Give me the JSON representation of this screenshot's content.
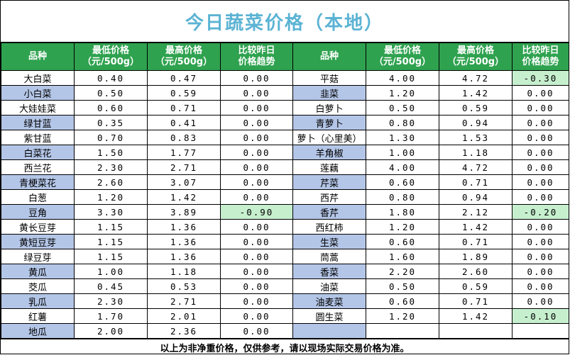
{
  "title": "今日蔬菜价格（本地）",
  "headers": {
    "name": "品种",
    "min_line1": "最低价格",
    "min_line2": "（元/500g）",
    "max_line1": "最高价格",
    "max_line2": "（元/500g）",
    "trend_line1": "比较昨日",
    "trend_line2": "价格趋势"
  },
  "rows": [
    {
      "l": {
        "name": "大白菜",
        "min": "0.40",
        "max": "0.47",
        "trend": "0.00"
      },
      "r": {
        "name": "平菇",
        "min": "4.00",
        "max": "4.72",
        "trend": "-0.30"
      }
    },
    {
      "l": {
        "name": "小白菜",
        "min": "0.50",
        "max": "0.59",
        "trend": "0.00"
      },
      "r": {
        "name": "韭菜",
        "min": "1.20",
        "max": "1.42",
        "trend": "0.00"
      }
    },
    {
      "l": {
        "name": "大娃娃菜",
        "min": "0.60",
        "max": "0.71",
        "trend": "0.00"
      },
      "r": {
        "name": "白萝卜",
        "min": "0.50",
        "max": "0.59",
        "trend": "0.00"
      }
    },
    {
      "l": {
        "name": "绿甘蓝",
        "min": "0.35",
        "max": "0.41",
        "trend": "0.00"
      },
      "r": {
        "name": "青萝卜",
        "min": "0.80",
        "max": "0.94",
        "trend": "0.00"
      }
    },
    {
      "l": {
        "name": "紫甘蓝",
        "min": "0.70",
        "max": "0.83",
        "trend": "0.00"
      },
      "r": {
        "name": "萝卜（心里美）",
        "min": "1.30",
        "max": "1.53",
        "trend": "0.00"
      }
    },
    {
      "l": {
        "name": "白菜花",
        "min": "1.50",
        "max": "1.77",
        "trend": "0.00"
      },
      "r": {
        "name": "羊角椒",
        "min": "1.00",
        "max": "1.18",
        "trend": "0.00"
      }
    },
    {
      "l": {
        "name": "西兰花",
        "min": "2.30",
        "max": "2.71",
        "trend": "0.00"
      },
      "r": {
        "name": "莲藕",
        "min": "4.00",
        "max": "4.72",
        "trend": "0.00"
      }
    },
    {
      "l": {
        "name": "青梗菜花",
        "min": "2.60",
        "max": "3.07",
        "trend": "0.00"
      },
      "r": {
        "name": "芹菜",
        "min": "0.60",
        "max": "0.71",
        "trend": "0.00"
      }
    },
    {
      "l": {
        "name": "白葱",
        "min": "1.20",
        "max": "1.42",
        "trend": "0.00"
      },
      "r": {
        "name": "西芹",
        "min": "0.80",
        "max": "0.94",
        "trend": "0.00"
      }
    },
    {
      "l": {
        "name": "豆角",
        "min": "3.30",
        "max": "3.89",
        "trend": "-0.90"
      },
      "r": {
        "name": "香芹",
        "min": "1.80",
        "max": "2.12",
        "trend": "-0.20"
      }
    },
    {
      "l": {
        "name": "黄长豆芽",
        "min": "1.15",
        "max": "1.36",
        "trend": "0.00"
      },
      "r": {
        "name": "西红柿",
        "min": "1.20",
        "max": "1.42",
        "trend": "0.00"
      }
    },
    {
      "l": {
        "name": "黄短豆芽",
        "min": "1.15",
        "max": "1.36",
        "trend": "0.00"
      },
      "r": {
        "name": "生菜",
        "min": "0.60",
        "max": "0.71",
        "trend": "0.00"
      }
    },
    {
      "l": {
        "name": "绿豆芽",
        "min": "1.15",
        "max": "1.36",
        "trend": "0.00"
      },
      "r": {
        "name": "茼蒿",
        "min": "1.60",
        "max": "1.89",
        "trend": "0.00"
      }
    },
    {
      "l": {
        "name": "黄瓜",
        "min": "1.00",
        "max": "1.18",
        "trend": "0.00"
      },
      "r": {
        "name": "香菜",
        "min": "2.20",
        "max": "2.60",
        "trend": "0.00"
      }
    },
    {
      "l": {
        "name": "茭瓜",
        "min": "0.45",
        "max": "0.53",
        "trend": "0.00"
      },
      "r": {
        "name": "油菜",
        "min": "0.50",
        "max": "0.59",
        "trend": "0.00"
      }
    },
    {
      "l": {
        "name": "乳瓜",
        "min": "2.30",
        "max": "2.71",
        "trend": "0.00"
      },
      "r": {
        "name": "油麦菜",
        "min": "0.60",
        "max": "0.71",
        "trend": "0.00"
      }
    },
    {
      "l": {
        "name": "红薯",
        "min": "1.70",
        "max": "2.01",
        "trend": "0.00"
      },
      "r": {
        "name": "圆生菜",
        "min": "1.20",
        "max": "1.42",
        "trend": "-0.10"
      }
    },
    {
      "l": {
        "name": "地瓜",
        "min": "2.00",
        "max": "2.36",
        "trend": "0.00"
      },
      "r": {
        "name": "",
        "min": "",
        "max": "",
        "trend": ""
      }
    }
  ],
  "footer": "以上为非净重价格，仅供参考，请以现场实际交易价格为准。",
  "colors": {
    "title": "#5bb3d4",
    "header_bg": "#2fa24f",
    "name_alt_bg": "#b4c6e7",
    "trend_highlight_bg": "#c6efce"
  }
}
